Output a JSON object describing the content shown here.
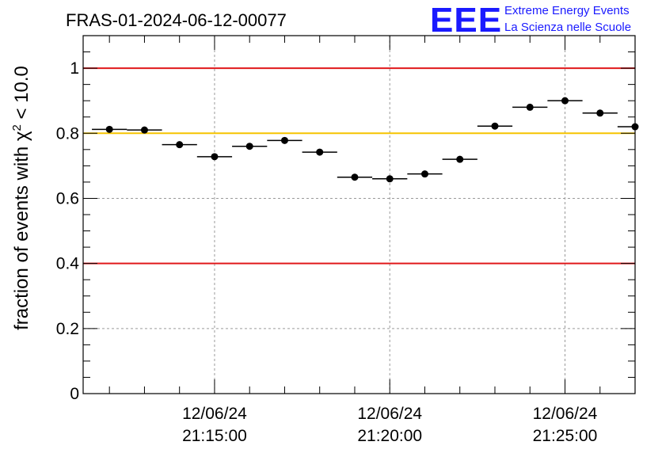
{
  "chart_data": {
    "type": "scatter",
    "title": "FRAS-01-2024-06-12-00077",
    "ylabel_prefix": "fraction of events with ",
    "ylabel_symbol": "χ",
    "ylabel_exponent": "2",
    "ylabel_suffix": " < 10.0",
    "xlabel": "",
    "x_unit": "minutes",
    "xlim": [
      "21:11:15",
      "21:27:00"
    ],
    "ylim": [
      0,
      1.1
    ],
    "y_ticks": [
      0,
      0.2,
      0.4,
      0.6,
      0.8,
      1
    ],
    "y_tick_labels": [
      "0",
      "0.2",
      "0.4",
      "0.6",
      "0.8",
      "1"
    ],
    "x_ticks": [
      "21:15:00",
      "21:20:00",
      "21:25:00"
    ],
    "x_tick_labels": [
      {
        "date": "12/06/24",
        "time": "21:15:00"
      },
      {
        "date": "12/06/24",
        "time": "21:20:00"
      },
      {
        "date": "12/06/24",
        "time": "21:25:00"
      }
    ],
    "grid": true,
    "reference_lines": [
      {
        "y": 1.0,
        "color": "#e0191b"
      },
      {
        "y": 0.8,
        "color": "#f5c400"
      },
      {
        "y": 0.4,
        "color": "#e0191b"
      }
    ],
    "bin_width_minutes": 1,
    "x": [
      "21:12:00",
      "21:13:00",
      "21:14:00",
      "21:15:00",
      "21:16:00",
      "21:17:00",
      "21:18:00",
      "21:19:00",
      "21:20:00",
      "21:21:00",
      "21:22:00",
      "21:23:00",
      "21:24:00",
      "21:25:00",
      "21:26:00",
      "21:27:00"
    ],
    "y": [
      0.812,
      0.81,
      0.765,
      0.728,
      0.76,
      0.778,
      0.742,
      0.665,
      0.66,
      0.675,
      0.72,
      0.822,
      0.88,
      0.9,
      0.862,
      0.82
    ],
    "marker_color": "#000000"
  },
  "logo": {
    "mark": "EEE",
    "line1": "Extreme Energy Events",
    "line2": "La Scienza nelle Scuole",
    "color": "#1a1aff"
  }
}
